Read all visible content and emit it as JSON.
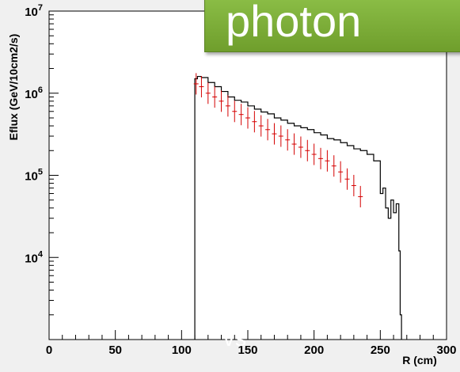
{
  "overlay": {
    "title": "photon",
    "vs_text": "vs"
  },
  "chart_data": {
    "type": "histogram",
    "xlabel": "R (cm)",
    "ylabel": "Eflux (GeV/10cm2/s)",
    "xlim": [
      0,
      300
    ],
    "ylim": [
      1000,
      10000000
    ],
    "yscale": "log",
    "x_ticks": [
      "0",
      "50",
      "100",
      "150",
      "200",
      "250",
      "300"
    ],
    "y_ticks": [
      {
        "base": "10",
        "exp": "4",
        "value": 10000
      },
      {
        "base": "10",
        "exp": "5",
        "value": 100000
      },
      {
        "base": "10",
        "exp": "6",
        "value": 1000000
      },
      {
        "base": "10",
        "exp": "7",
        "value": 10000000
      }
    ],
    "series": [
      {
        "color": "#000000",
        "style": "step",
        "x": [
          110,
          112,
          115,
          120,
          125,
          130,
          135,
          140,
          145,
          150,
          155,
          160,
          165,
          170,
          175,
          180,
          185,
          190,
          195,
          200,
          205,
          210,
          215,
          220,
          225,
          230,
          235,
          240,
          245,
          250,
          252,
          254,
          256,
          258,
          260,
          262,
          264,
          265,
          266
        ],
        "y": [
          1500000,
          1600000,
          1550000,
          1350000,
          1200000,
          1050000,
          900000,
          820000,
          780000,
          700000,
          640000,
          590000,
          560000,
          500000,
          470000,
          430000,
          400000,
          380000,
          360000,
          330000,
          310000,
          280000,
          270000,
          250000,
          230000,
          210000,
          200000,
          180000,
          150000,
          60000,
          70000,
          40000,
          30000,
          50000,
          35000,
          45000,
          12000,
          2000,
          1000
        ]
      },
      {
        "color": "#d40000",
        "style": "errorbar",
        "x": [
          111,
          115,
          120,
          125,
          130,
          135,
          140,
          145,
          150,
          155,
          160,
          165,
          170,
          175,
          180,
          185,
          190,
          195,
          200,
          205,
          210,
          215,
          220,
          225,
          230,
          235
        ],
        "y": [
          1300000,
          1200000,
          1000000,
          900000,
          800000,
          700000,
          600000,
          550000,
          500000,
          450000,
          400000,
          360000,
          320000,
          300000,
          270000,
          240000,
          220000,
          200000,
          180000,
          160000,
          150000,
          130000,
          110000,
          90000,
          75000,
          55000
        ]
      }
    ]
  }
}
